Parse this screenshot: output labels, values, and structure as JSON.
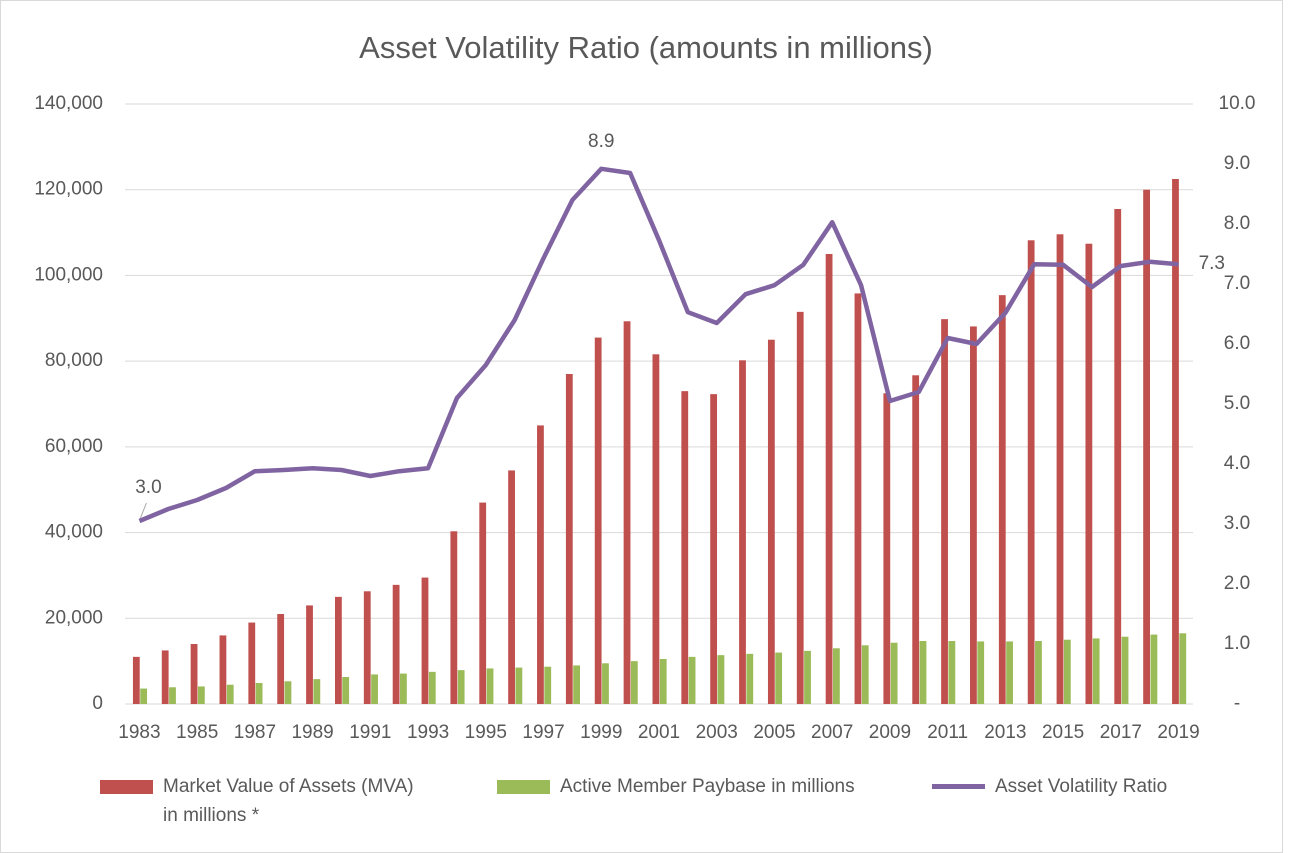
{
  "chart_data": {
    "type": "bar_line",
    "title": "Asset Volatility Ratio (amounts in millions)",
    "categories": [
      "1983",
      null,
      "1985",
      null,
      "1987",
      null,
      "1989",
      null,
      "1991",
      null,
      "1993",
      null,
      "1995",
      null,
      "1997",
      null,
      "1999",
      null,
      "2001",
      null,
      "2003",
      null,
      "2005",
      null,
      "2007",
      null,
      "2009",
      null,
      "2011",
      null,
      "2013",
      null,
      "2015",
      null,
      "2017",
      null,
      "2019"
    ],
    "series": [
      {
        "name": "Market Value of Assets (MVA) in millions *",
        "type": "bar",
        "color": "#c0504d",
        "values": [
          11000,
          12500,
          14000,
          16000,
          19000,
          21000,
          23000,
          25000,
          26300,
          27800,
          29500,
          40300,
          47000,
          54500,
          65000,
          77000,
          85500,
          89300,
          81600,
          73000,
          72300,
          80200,
          85000,
          91500,
          105000,
          95800,
          72500,
          76700,
          89800,
          88100,
          95400,
          108200,
          109600,
          107400,
          115500,
          120000,
          122500
        ]
      },
      {
        "name": "Active Member Paybase in millions",
        "type": "bar",
        "color": "#9bbb59",
        "values": [
          3600,
          3900,
          4100,
          4500,
          4900,
          5300,
          5800,
          6300,
          6900,
          7100,
          7500,
          7900,
          8300,
          8500,
          8700,
          9000,
          9500,
          10000,
          10500,
          11000,
          11400,
          11700,
          12000,
          12400,
          13000,
          13700,
          14300,
          14700,
          14700,
          14600,
          14600,
          14700,
          15000,
          15300,
          15700,
          16200,
          16500
        ]
      },
      {
        "name": "Asset Volatility Ratio",
        "type": "line",
        "axis": "y2",
        "color": "#8064a2",
        "values": [
          3.05,
          3.25,
          3.4,
          3.6,
          3.88,
          3.9,
          3.93,
          3.9,
          3.8,
          3.88,
          3.93,
          5.1,
          5.65,
          6.4,
          7.43,
          8.4,
          8.92,
          8.85,
          7.73,
          6.53,
          6.35,
          6.83,
          6.98,
          7.32,
          8.03,
          6.98,
          5.05,
          5.2,
          6.1,
          6.0,
          6.52,
          7.33,
          7.32,
          6.95,
          7.3,
          7.37,
          7.33
        ],
        "value_labels": [
          "3.0",
          null,
          null,
          null,
          null,
          null,
          null,
          null,
          null,
          null,
          null,
          null,
          null,
          null,
          null,
          null,
          "8.9",
          null,
          null,
          null,
          null,
          null,
          null,
          null,
          null,
          null,
          null,
          null,
          null,
          null,
          null,
          null,
          null,
          null,
          null,
          null,
          "7.3"
        ]
      }
    ],
    "ylim": [
      0,
      140000
    ],
    "yticks": [
      0,
      {
        "value": 20000,
        "label": "20,000"
      },
      {
        "value": 40000,
        "label": "40,000"
      },
      {
        "value": 60000,
        "label": "60,000"
      },
      {
        "value": 80000,
        "label": "80,000"
      },
      {
        "value": 100000,
        "label": "100,000"
      },
      {
        "value": 120000,
        "label": "120,000"
      },
      {
        "value": 140000,
        "label": "140,000"
      }
    ],
    "y2lim": [
      0,
      10
    ],
    "y2ticks": [
      {
        "value": 0,
        "label": "-"
      },
      {
        "value": 1,
        "label": "1.0"
      },
      {
        "value": 2,
        "label": "2.0"
      },
      {
        "value": 3,
        "label": "3.0"
      },
      {
        "value": 4,
        "label": "4.0"
      },
      {
        "value": 5,
        "label": "5.0"
      },
      {
        "value": 6,
        "label": "6.0"
      },
      {
        "value": 7,
        "label": "7.0"
      },
      {
        "value": 8,
        "label": "8.0"
      },
      {
        "value": 9,
        "label": "9.0"
      },
      {
        "value": 10,
        "label": "10.0"
      }
    ],
    "grid": true,
    "legend": "bottom"
  }
}
